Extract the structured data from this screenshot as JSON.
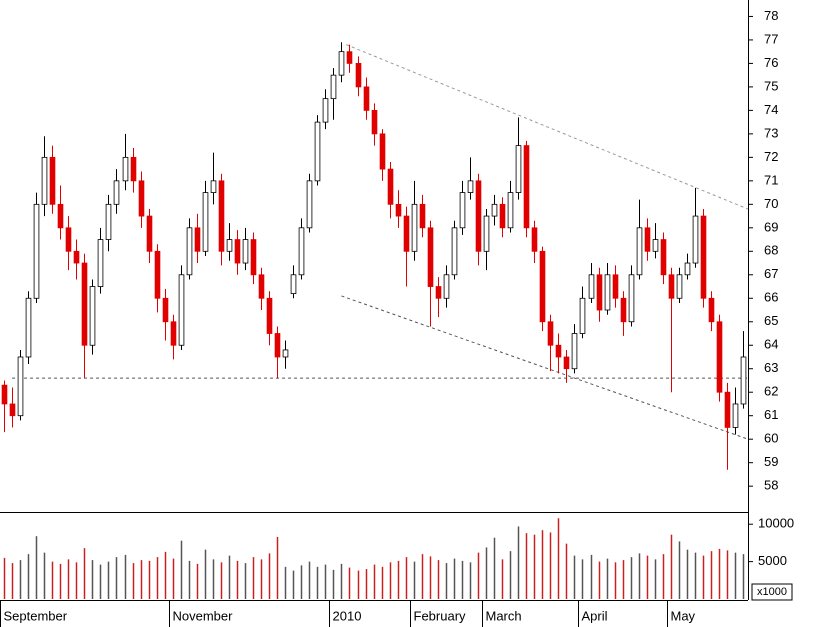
{
  "chart_data": {
    "type": "candlestick",
    "ohlc": [
      [
        62.3,
        62.5,
        60.3,
        61.5
      ],
      [
        61.5,
        62.2,
        60.5,
        61.0
      ],
      [
        61.0,
        63.8,
        60.8,
        63.5
      ],
      [
        63.5,
        66.3,
        63.2,
        66
      ],
      [
        66,
        70.5,
        65.8,
        70
      ],
      [
        70,
        72.9,
        69.5,
        72
      ],
      [
        72,
        72.5,
        69.6,
        70
      ],
      [
        70,
        70.8,
        68.5,
        69
      ],
      [
        69,
        69.5,
        67.2,
        68
      ],
      [
        68,
        68.5,
        66.8,
        67.5
      ],
      [
        67.5,
        67.9,
        62.6,
        64
      ],
      [
        64,
        66.8,
        63.6,
        66.5
      ],
      [
        66.5,
        69,
        66.2,
        68.5
      ],
      [
        68.5,
        70.4,
        68,
        70
      ],
      [
        70,
        71.5,
        69.6,
        71
      ],
      [
        71,
        73,
        70.6,
        72
      ],
      [
        72,
        72.4,
        70.5,
        71
      ],
      [
        71,
        71.4,
        69,
        69.5
      ],
      [
        69.5,
        69.8,
        67.5,
        68
      ],
      [
        68,
        68.3,
        65.4,
        66
      ],
      [
        66,
        66.4,
        64.2,
        65
      ],
      [
        65,
        65.3,
        63.4,
        64
      ],
      [
        64,
        67.4,
        63.8,
        67
      ],
      [
        67,
        69.4,
        66.8,
        69
      ],
      [
        69,
        69.6,
        67.5,
        68
      ],
      [
        68,
        71,
        67.8,
        70.5
      ],
      [
        70.5,
        72.2,
        70,
        71
      ],
      [
        71,
        71.3,
        67.4,
        68
      ],
      [
        68,
        69.2,
        67.6,
        68.5
      ],
      [
        68.5,
        68.9,
        67,
        67.5
      ],
      [
        67.5,
        69,
        67.2,
        68.5
      ],
      [
        68.5,
        68.8,
        66.6,
        67
      ],
      [
        67,
        67.3,
        65.5,
        66
      ],
      [
        66,
        66.3,
        64,
        64.5
      ],
      [
        64.5,
        64.8,
        62.6,
        63.5
      ],
      [
        63.5,
        64.2,
        63,
        63.8
      ],
      [
        66.2,
        67.4,
        66,
        67
      ],
      [
        67,
        69.4,
        66.8,
        69
      ],
      [
        69,
        71.3,
        68.8,
        71
      ],
      [
        71,
        73.8,
        70.8,
        73.5
      ],
      [
        73.5,
        74.9,
        73.2,
        74.5
      ],
      [
        74.5,
        75.8,
        73.6,
        75.5
      ],
      [
        75.5,
        76.9,
        75.2,
        76.5
      ],
      [
        76.5,
        76.8,
        75.6,
        76
      ],
      [
        76,
        76.3,
        74.6,
        75
      ],
      [
        75,
        75.4,
        73.6,
        74
      ],
      [
        74,
        74.3,
        72.5,
        73
      ],
      [
        73,
        73.2,
        71,
        71.5
      ],
      [
        71.5,
        71.8,
        69.4,
        70
      ],
      [
        70,
        70.6,
        69,
        69.5
      ],
      [
        69.5,
        69.9,
        66.5,
        68
      ],
      [
        68,
        71,
        67.6,
        70
      ],
      [
        70,
        70.4,
        68.6,
        69
      ],
      [
        69,
        69.3,
        64.8,
        66.5
      ],
      [
        66.5,
        66.9,
        65.2,
        66
      ],
      [
        66,
        67.4,
        65.6,
        67
      ],
      [
        67,
        69.3,
        66.8,
        69
      ],
      [
        69,
        71,
        68.7,
        70.5
      ],
      [
        70.5,
        72,
        70.2,
        71
      ],
      [
        71,
        71.3,
        67.4,
        68
      ],
      [
        68,
        69.8,
        67.2,
        69.5
      ],
      [
        69.5,
        70.4,
        69.1,
        70
      ],
      [
        70,
        70.3,
        68.6,
        69
      ],
      [
        69,
        71,
        68.8,
        70.5
      ],
      [
        70.5,
        73.7,
        70.2,
        72.5
      ],
      [
        72.5,
        72.7,
        68.6,
        69
      ],
      [
        69,
        69.3,
        67.5,
        68
      ],
      [
        68,
        68.2,
        64.6,
        65
      ],
      [
        65,
        65.3,
        62.9,
        64
      ],
      [
        64,
        64.5,
        62.8,
        63.5
      ],
      [
        63.5,
        63.8,
        62.4,
        63
      ],
      [
        63,
        64.9,
        62.8,
        64.5
      ],
      [
        64.5,
        66.5,
        64.3,
        66
      ],
      [
        66,
        67.5,
        65.8,
        67
      ],
      [
        67,
        67.3,
        65,
        65.5
      ],
      [
        65.5,
        67.5,
        65.3,
        67
      ],
      [
        67,
        67.4,
        65.6,
        66
      ],
      [
        66,
        66.3,
        64.4,
        65
      ],
      [
        65,
        67.4,
        64.8,
        67
      ],
      [
        67,
        70.2,
        66.8,
        69
      ],
      [
        69,
        69.4,
        67.6,
        68
      ],
      [
        68,
        69.2,
        67.7,
        68.5
      ],
      [
        68.5,
        68.8,
        66.6,
        67
      ],
      [
        67,
        67.3,
        62,
        66
      ],
      [
        66,
        67.3,
        65.8,
        67
      ],
      [
        67,
        67.9,
        66.8,
        67.5
      ],
      [
        67.5,
        70.7,
        67.3,
        69.5
      ],
      [
        69.5,
        69.8,
        65.6,
        66
      ],
      [
        66,
        66.3,
        64.6,
        65
      ],
      [
        65,
        65.3,
        61.6,
        62
      ],
      [
        62,
        62.4,
        58.7,
        60.5
      ],
      [
        60.5,
        62.2,
        60.2,
        61.5
      ],
      [
        61.5,
        64.6,
        61.3,
        63.5
      ]
    ],
    "volume": [
      5500,
      4800,
      5200,
      6000,
      8400,
      6200,
      5000,
      4700,
      5300,
      4900,
      6800,
      5200,
      4600,
      5000,
      5600,
      5900,
      4800,
      5200,
      5100,
      5600,
      6300,
      5400,
      7800,
      5100,
      4700,
      6600,
      5300,
      4900,
      5800,
      5100,
      4800,
      5600,
      5300,
      6100,
      8300,
      4300,
      3800,
      4500,
      5000,
      4300,
      4600,
      3900,
      4700,
      4200,
      3800,
      4000,
      4600,
      4300,
      4900,
      5100,
      5600,
      5000,
      6000,
      5700,
      5200,
      4800,
      5400,
      5100,
      4900,
      6200,
      6900,
      8200,
      5300,
      6400,
      9700,
      8800,
      8600,
      9200,
      8900,
      10800,
      7400,
      5800,
      5300,
      5900,
      5000,
      5400,
      4900,
      5200,
      5600,
      6100,
      5800,
      5300,
      6000,
      8600,
      7700,
      6600,
      6200,
      5800,
      6400,
      6700,
      6500,
      6200,
      6000
    ],
    "up_color": "#ffffff",
    "down_color": "#e00000",
    "volume_up_color": "#555555",
    "volume_down_color": "#cc2020",
    "xlim": [
      -0.5,
      92.6
    ],
    "xticks": [
      {
        "value": 0,
        "label": "September"
      },
      {
        "value": 21,
        "label": "November"
      },
      {
        "value": 41,
        "label": "2010"
      },
      {
        "value": 51,
        "label": "February"
      },
      {
        "value": 60,
        "label": "March"
      },
      {
        "value": 72,
        "label": "April"
      },
      {
        "value": 83,
        "label": "May"
      }
    ],
    "ylim": [
      56.9,
      78.7
    ],
    "yticks": [
      58,
      59,
      60,
      61,
      62,
      63,
      64,
      65,
      66,
      67,
      68,
      69,
      70,
      71,
      72,
      73,
      74,
      75,
      76,
      77,
      78
    ],
    "y2lim": [
      0,
      11500
    ],
    "y2ticks": [
      5000,
      10000
    ],
    "volume_unit": "x1000",
    "lines": [
      {
        "x": [
          42.6,
          92.6
        ],
        "y": [
          76.8,
          69.8
        ],
        "color": "#999999"
      },
      {
        "x": [
          42,
          92.6
        ],
        "y": [
          66.1,
          60.0
        ],
        "color": "#555555"
      },
      {
        "x": [
          1,
          92.6
        ],
        "y": [
          62.6,
          62.6
        ],
        "color": "#555555"
      }
    ]
  }
}
